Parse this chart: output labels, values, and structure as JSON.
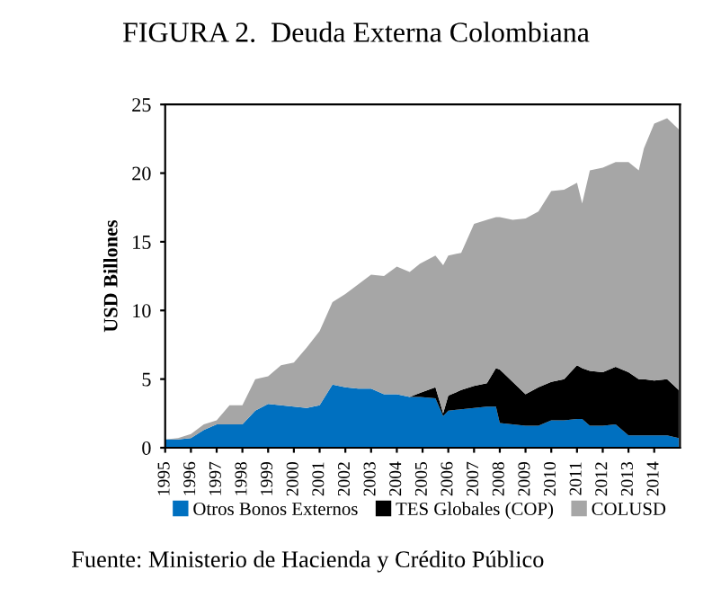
{
  "chart_data": {
    "type": "area",
    "stacked": true,
    "title": "FIGURA 2.  Deuda Externa Colombiana",
    "ylabel": "USD Billones",
    "x": [
      1995,
      1995.5,
      1996,
      1996.5,
      1997,
      1997.5,
      1998,
      1998.5,
      1999,
      1999.5,
      2000,
      2000.5,
      2001,
      2001.5,
      2002,
      2002.5,
      2003,
      2003.5,
      2004,
      2004.5,
      2004.9,
      2005.5,
      2005.8,
      2006,
      2006.5,
      2007,
      2007.5,
      2007.85,
      2008,
      2008.5,
      2009,
      2009.5,
      2010,
      2010.5,
      2011,
      2011.2,
      2011.5,
      2012,
      2012.5,
      2013,
      2013.4,
      2013.6,
      2014,
      2014.5,
      2014.95
    ],
    "series": [
      {
        "name": "Otros Bonos Externos",
        "color": "#0070c0",
        "values": [
          0.6,
          0.6,
          0.7,
          1.3,
          1.7,
          1.7,
          1.7,
          2.7,
          3.2,
          3.1,
          3.0,
          2.9,
          3.1,
          4.6,
          4.4,
          4.3,
          4.3,
          3.9,
          3.9,
          3.7,
          3.7,
          3.6,
          2.3,
          2.7,
          2.8,
          2.9,
          3.0,
          3.0,
          1.8,
          1.7,
          1.6,
          1.6,
          2.0,
          2.0,
          2.1,
          2.1,
          1.6,
          1.6,
          1.7,
          0.9,
          0.9,
          0.9,
          0.9,
          0.9,
          0.7
        ]
      },
      {
        "name": "TES Globales (COP)",
        "color": "#000000",
        "values": [
          0,
          0,
          0,
          0,
          0,
          0,
          0,
          0,
          0,
          0,
          0,
          0,
          0,
          0,
          0,
          0,
          0,
          0,
          0,
          0,
          0.3,
          0.8,
          0.2,
          1.1,
          1.4,
          1.6,
          1.7,
          2.8,
          3.9,
          3.1,
          2.3,
          2.8,
          2.8,
          3.0,
          3.9,
          3.7,
          4.0,
          3.9,
          4.2,
          4.6,
          4.1,
          4.1,
          4.0,
          4.1,
          3.5
        ]
      },
      {
        "name": "COLUSD",
        "color": "#a6a6a6",
        "values": [
          0.0,
          0.1,
          0.3,
          0.4,
          0.3,
          1.4,
          1.4,
          2.3,
          2.0,
          2.9,
          3.2,
          4.4,
          5.4,
          6.0,
          6.8,
          7.6,
          8.3,
          8.6,
          9.3,
          9.1,
          9.4,
          9.6,
          10.8,
          10.2,
          10.0,
          11.8,
          11.9,
          11.0,
          11.1,
          11.8,
          12.8,
          12.8,
          13.9,
          13.8,
          13.3,
          12.0,
          14.6,
          14.9,
          14.9,
          15.3,
          15.2,
          16.8,
          18.7,
          19.0,
          19.0
        ]
      }
    ],
    "xlim": [
      1995,
      2015
    ],
    "xticks": [
      1995,
      1996,
      1997,
      1998,
      1999,
      2000,
      2001,
      2002,
      2003,
      2004,
      2005,
      2006,
      2007,
      2008,
      2009,
      2010,
      2011,
      2012,
      2013,
      2014
    ],
    "ylim": [
      0,
      25
    ],
    "yticks": [
      0,
      5,
      10,
      15,
      20,
      25
    ],
    "grid": false,
    "legend": "bottom",
    "annotations": [
      "Fuente: Ministerio de Hacienda y Crédito Público"
    ]
  }
}
